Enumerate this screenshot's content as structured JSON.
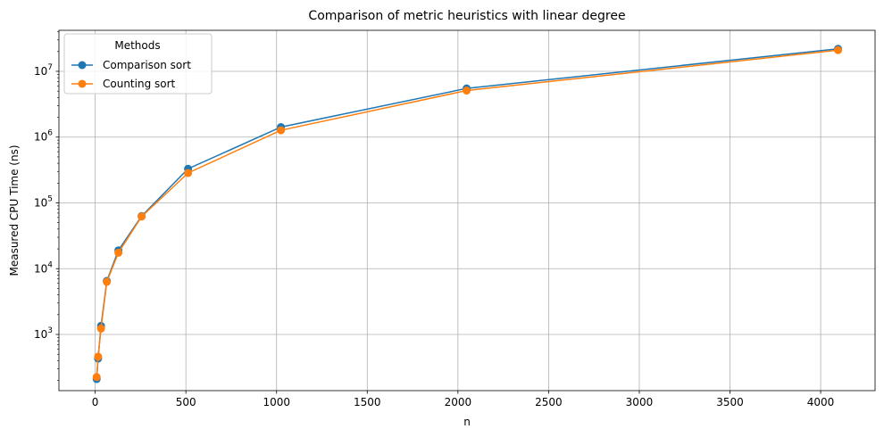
{
  "chart_data": {
    "type": "line",
    "title": "Comparison of metric heuristics with linear degree",
    "xlabel": "n",
    "ylabel": "Measured CPU Time (ns)",
    "xlim": [
      -200,
      4300
    ],
    "ylim": [
      140,
      42000000
    ],
    "yscale": "log",
    "grid": true,
    "x_ticks": [
      0,
      500,
      1000,
      1500,
      2000,
      2500,
      3000,
      3500,
      4000
    ],
    "x_tick_labels": [
      "0",
      "500",
      "1000",
      "1500",
      "2000",
      "2500",
      "3000",
      "3500",
      "4000"
    ],
    "y_ticks": [
      1000,
      10000,
      100000,
      1000000,
      10000000
    ],
    "y_tick_labels": [
      {
        "base": "10",
        "exp": "3"
      },
      {
        "base": "10",
        "exp": "4"
      },
      {
        "base": "10",
        "exp": "5"
      },
      {
        "base": "10",
        "exp": "6"
      },
      {
        "base": "10",
        "exp": "7"
      }
    ],
    "legend": {
      "title": "Methods",
      "placement": "top-left"
    },
    "x": [
      8,
      16,
      32,
      64,
      128,
      256,
      512,
      1024,
      2048,
      4096
    ],
    "series": [
      {
        "name": "Comparison sort",
        "color": "#1f77b4",
        "values": [
          210,
          430,
          1350,
          6500,
          19000,
          63000,
          330000,
          1420000,
          5500000,
          22000000
        ]
      },
      {
        "name": "Counting sort",
        "color": "#ff7f0e",
        "values": [
          225,
          460,
          1230,
          6300,
          17500,
          62000,
          285000,
          1270000,
          5100000,
          21000000
        ]
      }
    ]
  }
}
